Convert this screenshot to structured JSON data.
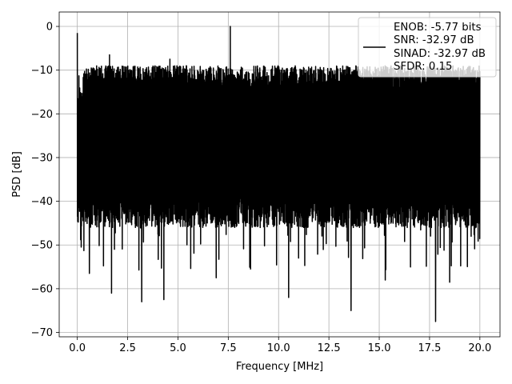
{
  "chart_data": {
    "type": "line",
    "xlabel": "Frequency [MHz]",
    "ylabel": "PSD [dB]",
    "xlim": [
      -0.9,
      21.0
    ],
    "ylim": [
      -71,
      3.3
    ],
    "xticks": [
      0.0,
      2.5,
      5.0,
      7.5,
      10.0,
      12.5,
      15.0,
      17.5,
      20.0
    ],
    "xtick_labels": [
      "0.0",
      "2.5",
      "5.0",
      "7.5",
      "10.0",
      "12.5",
      "15.0",
      "17.5",
      "20.0"
    ],
    "yticks": [
      0,
      -10,
      -20,
      -30,
      -40,
      -50,
      -60,
      -70
    ],
    "ytick_labels": [
      "0",
      "−10",
      "−20",
      "−30",
      "−40",
      "−50",
      "−60",
      "−70"
    ],
    "grid": true,
    "legend_position": "top-right",
    "legend_entries": [
      "ENOB: -5.77 bits",
      "SNR: -32.97 dB",
      "SINAD: -32.97 dB",
      "SFDR: 0.15"
    ],
    "series": [
      {
        "name": "ENOB: -5.77 bits",
        "color": "#000000",
        "x_range": [
          0.0,
          20.0
        ],
        "typical_upper_envelope_db": -12,
        "typical_lower_envelope_db": -44,
        "peaks": [
          {
            "x": 0.0,
            "y": -1.5
          },
          {
            "x": 1.6,
            "y": -6.5
          },
          {
            "x": 4.6,
            "y": -7.5
          },
          {
            "x": 7.6,
            "y": 0.0
          },
          {
            "x": 10.5,
            "y": -7.0
          }
        ],
        "dips": [
          {
            "x": 0.6,
            "y": -56.5
          },
          {
            "x": 1.7,
            "y": -61.0
          },
          {
            "x": 3.2,
            "y": -63.0
          },
          {
            "x": 4.3,
            "y": -62.5
          },
          {
            "x": 6.9,
            "y": -57.5
          },
          {
            "x": 10.5,
            "y": -62.0
          },
          {
            "x": 13.6,
            "y": -65.0
          },
          {
            "x": 15.3,
            "y": -58.0
          },
          {
            "x": 17.8,
            "y": -67.5
          },
          {
            "x": 18.5,
            "y": -58.5
          }
        ]
      }
    ]
  }
}
